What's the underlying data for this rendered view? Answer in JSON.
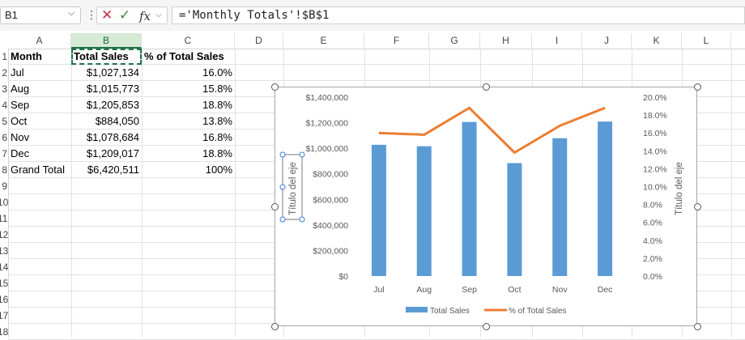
{
  "formula_bar": {
    "name_box": "B1",
    "name_box_dropdown": "⌵",
    "more": "⋮",
    "cancel": "✕",
    "enter": "✓",
    "fx": "fx",
    "fx_dropdown": "⌵",
    "formula": "='Monthly Totals'!$B$1"
  },
  "columns": [
    "A",
    "B",
    "C",
    "D",
    "E",
    "F",
    "G",
    "H",
    "I",
    "J",
    "K",
    "L"
  ],
  "selected_column": "B",
  "rows": [
    "1",
    "2",
    "3",
    "4",
    "5",
    "6",
    "7",
    "8",
    "9",
    "10",
    "11",
    "12",
    "13",
    "14",
    "15",
    "16",
    "17",
    "18"
  ],
  "table": {
    "headers": [
      "Month",
      "Total Sales",
      "% of Total Sales"
    ],
    "rows": [
      [
        "Jul",
        "$1,027,134",
        "16.0%"
      ],
      [
        "Aug",
        "$1,015,773",
        "15.8%"
      ],
      [
        "Sep",
        "$1,205,853",
        "18.8%"
      ],
      [
        "Oct",
        "$884,050",
        "13.8%"
      ],
      [
        "Nov",
        "$1,078,684",
        "16.8%"
      ],
      [
        "Dec",
        "$1,209,017",
        "18.8%"
      ],
      [
        "Grand Total",
        "$6,420,511",
        "100%"
      ]
    ]
  },
  "chart_data": {
    "type": "bar",
    "categories": [
      "Jul",
      "Aug",
      "Sep",
      "Oct",
      "Nov",
      "Dec"
    ],
    "series": [
      {
        "name": "Total Sales",
        "type": "bar",
        "axis": "left",
        "color": "#5b9bd5",
        "values": [
          1027134,
          1015773,
          1205853,
          884050,
          1078684,
          1209017
        ]
      },
      {
        "name": "% of Total Sales",
        "type": "line",
        "axis": "right",
        "color": "#ed7d31",
        "values": [
          16.0,
          15.8,
          18.8,
          13.8,
          16.8,
          18.8
        ]
      }
    ],
    "ylabel": "Título del eje",
    "y2label": "Título del eje",
    "ylim": [
      0,
      1400000
    ],
    "y2lim": [
      0,
      20
    ],
    "yticks": [
      "$0",
      "$200,000",
      "$400,000",
      "$600,000",
      "$800,000",
      "$1,000,000",
      "$1,200,000",
      "$1,400,000"
    ],
    "y2ticks": [
      "0.0%",
      "2.0%",
      "4.0%",
      "6.0%",
      "8.0%",
      "10.0%",
      "12.0%",
      "14.0%",
      "16.0%",
      "18.0%",
      "20.0%"
    ],
    "legend": "bottom",
    "grid": false
  }
}
